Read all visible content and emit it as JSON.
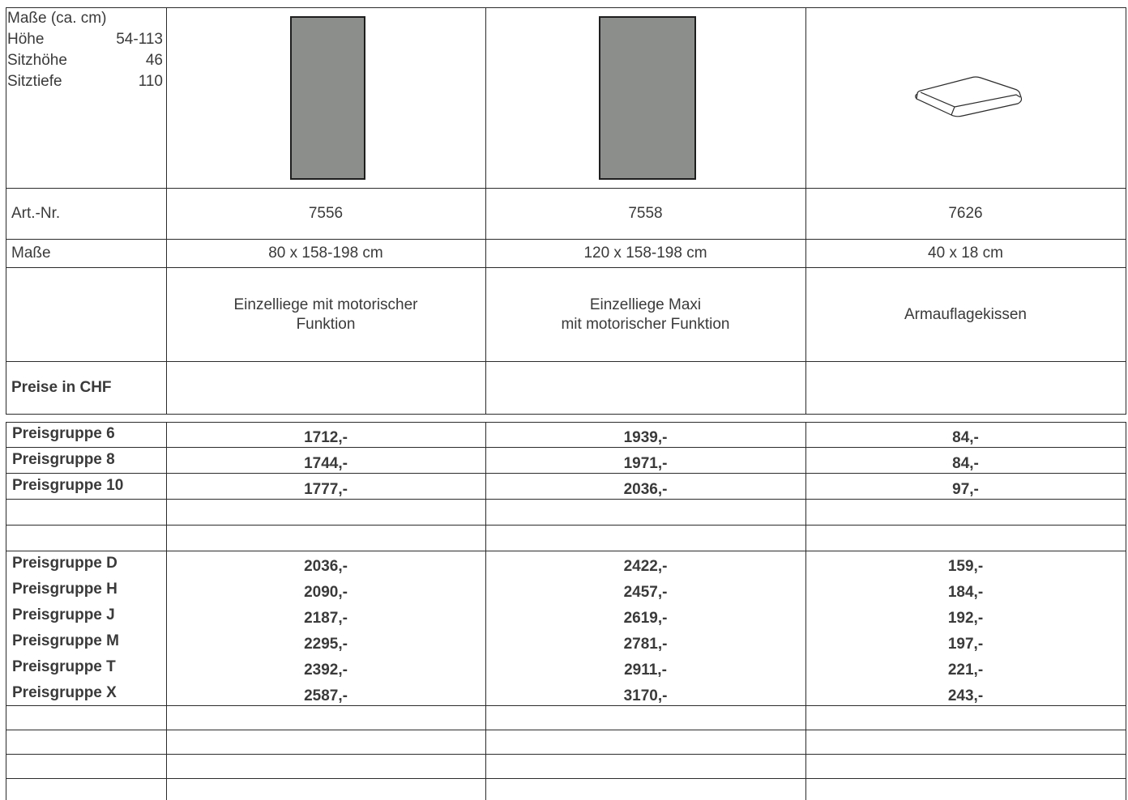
{
  "dimensions": {
    "title": "Maße (ca. cm)",
    "rows": [
      {
        "label": "Höhe",
        "value": "54-113"
      },
      {
        "label": "Sitzhöhe",
        "value": "46"
      },
      {
        "label": "Sitztiefe",
        "value": "110"
      }
    ]
  },
  "rows": {
    "art_label": "Art.-Nr.",
    "masse_label": "Maße",
    "prices_label": "Preise in CHF"
  },
  "products": [
    {
      "art": "7556",
      "masse": "80 x 158-198 cm",
      "desc_line1": "Einzelliege mit motorischer",
      "desc_line2": "Funktion",
      "image": "lounger-rectangle-image"
    },
    {
      "art": "7558",
      "masse": "120 x 158-198 cm",
      "desc_line1": "Einzelliege Maxi",
      "desc_line2": "mit motorischer Funktion",
      "image": "lounger-rectangle-image"
    },
    {
      "art": "7626",
      "masse": "40 x 18 cm",
      "desc_line1": "Armauflagekissen",
      "desc_line2": "",
      "image": "cushion-image"
    }
  ],
  "price_groups_a": [
    {
      "label": "Preisgruppe 6",
      "prices": [
        "1712,-",
        "1939,-",
        "84,-"
      ]
    },
    {
      "label": "Preisgruppe 8",
      "prices": [
        "1744,-",
        "1971,-",
        "84,-"
      ]
    },
    {
      "label": "Preisgruppe 10",
      "prices": [
        "1777,-",
        "2036,-",
        "97,-"
      ]
    }
  ],
  "price_groups_b": [
    {
      "label": "Preisgruppe D",
      "prices": [
        "2036,-",
        "2422,-",
        "159,-"
      ]
    },
    {
      "label": "Preisgruppe H",
      "prices": [
        "2090,-",
        "2457,-",
        "184,-"
      ]
    },
    {
      "label": "Preisgruppe J",
      "prices": [
        "2187,-",
        "2619,-",
        "192,-"
      ]
    },
    {
      "label": "Preisgruppe M",
      "prices": [
        "2295,-",
        "2781,-",
        "197,-"
      ]
    },
    {
      "label": "Preisgruppe T",
      "prices": [
        "2392,-",
        "2911,-",
        "221,-"
      ]
    },
    {
      "label": "Preisgruppe X",
      "prices": [
        "2587,-",
        "3170,-",
        "243,-"
      ]
    }
  ],
  "colors": {
    "rule": "#2b2b2b",
    "product_fill": "#8c8e8c",
    "text": "#3a3a3a"
  }
}
